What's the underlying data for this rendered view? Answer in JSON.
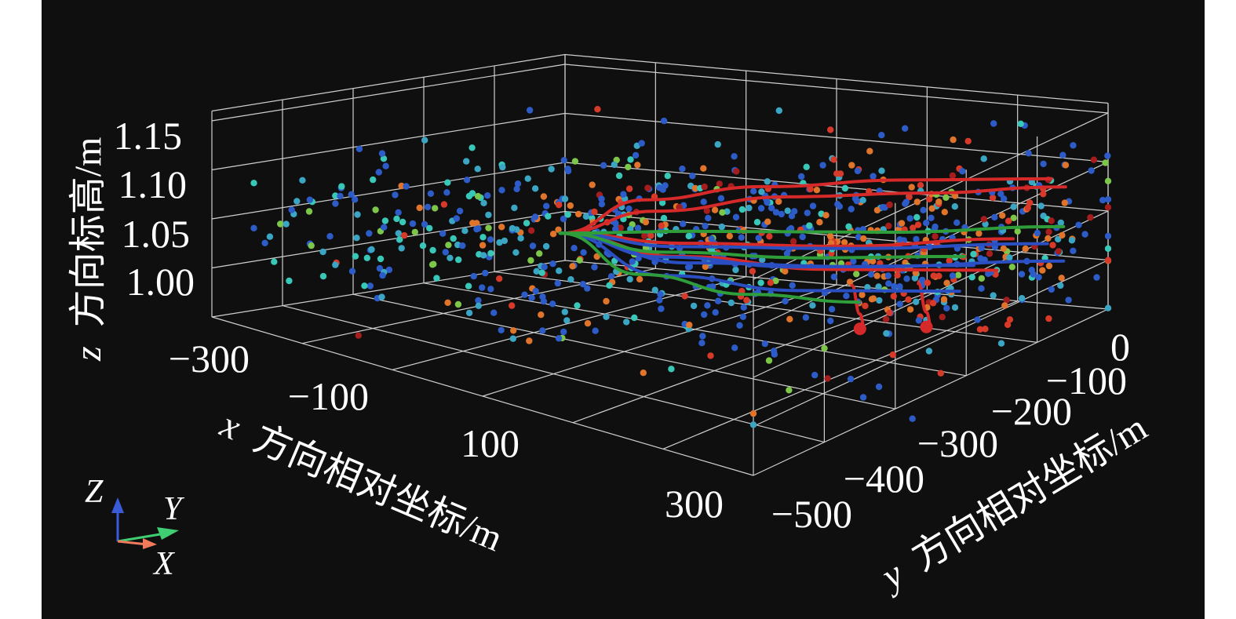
{
  "chart_data": {
    "type": "scatter",
    "title": "",
    "xlabel_var": "x",
    "xlabel": "方向相对坐标/m",
    "ylabel_var": "y",
    "ylabel": "方向相对坐标/m",
    "zlabel_var": "z",
    "zlabel": "方向标高/m",
    "xlim": [
      -300,
      300
    ],
    "ylim": [
      -500,
      0
    ],
    "zlim": [
      0.95,
      1.16
    ],
    "x_ticks": [
      "−300",
      "−100",
      "100",
      "300"
    ],
    "y_ticks": [
      "0",
      "−100",
      "−200",
      "−300",
      "−400",
      "−500"
    ],
    "z_ticks": [
      "1.00",
      "1.05",
      "1.10",
      "1.15"
    ],
    "grid": true,
    "background": "#0f0f0f",
    "point_colors": [
      "#2d5cc8",
      "#3aa6c4",
      "#39c7b8",
      "#7cc74a",
      "#e0742a",
      "#d83a2a",
      "#a51d1d"
    ],
    "trajectory_colors": {
      "red": "#d62a2a",
      "blue": "#2b4fc2",
      "green": "#2f9e3a"
    },
    "orientation_triad": {
      "z_label": "Z",
      "y_label": "Y",
      "x_label": "X",
      "z_color": "#3a5bd8",
      "y_color": "#3fcf72",
      "x_color": "#f07a5a"
    },
    "trajectories": [
      {
        "color": "red",
        "points": [
          [
            -110,
            -250,
            1.04
          ],
          [
            -40,
            -280,
            1.08
          ],
          [
            60,
            -320,
            1.1
          ],
          [
            180,
            -370,
            1.11
          ],
          [
            300,
            -420,
            1.11
          ]
        ]
      },
      {
        "color": "red",
        "points": [
          [
            -110,
            -250,
            1.04
          ],
          [
            -30,
            -280,
            1.07
          ],
          [
            80,
            -330,
            1.09
          ],
          [
            190,
            -380,
            1.095
          ],
          [
            300,
            -440,
            1.095
          ]
        ]
      },
      {
        "color": "red",
        "points": [
          [
            -110,
            -250,
            1.04
          ],
          [
            0,
            -290,
            1.04
          ],
          [
            120,
            -350,
            1.04
          ],
          [
            250,
            -430,
            1.04
          ]
        ]
      },
      {
        "color": "red",
        "points": [
          [
            -110,
            -250,
            1.04
          ],
          [
            -10,
            -290,
            1.025
          ],
          [
            110,
            -350,
            1.015
          ],
          [
            240,
            -420,
            1.01
          ]
        ]
      },
      {
        "color": "red",
        "points": [
          [
            150,
            -330,
            1.01
          ],
          [
            155,
            -335,
            0.98
          ],
          [
            158,
            -338,
            0.965
          ]
        ]
      },
      {
        "color": "red",
        "points": [
          [
            200,
            -360,
            1.01
          ],
          [
            205,
            -365,
            0.98
          ],
          [
            208,
            -368,
            0.965
          ]
        ]
      },
      {
        "color": "blue",
        "points": [
          [
            -110,
            -250,
            1.04
          ],
          [
            -10,
            -290,
            1.035
          ],
          [
            120,
            -360,
            1.035
          ],
          [
            280,
            -440,
            1.035
          ]
        ]
      },
      {
        "color": "blue",
        "points": [
          [
            -110,
            -250,
            1.04
          ],
          [
            0,
            -290,
            1.02
          ],
          [
            130,
            -370,
            1.015
          ],
          [
            290,
            -450,
            1.015
          ]
        ]
      },
      {
        "color": "blue",
        "points": [
          [
            -110,
            -250,
            1.04
          ],
          [
            -20,
            -280,
            1.025
          ],
          [
            90,
            -330,
            1.02
          ],
          [
            230,
            -400,
            1.02
          ]
        ]
      },
      {
        "color": "blue",
        "points": [
          [
            -110,
            -250,
            1.04
          ],
          [
            -10,
            -270,
            1.01
          ],
          [
            100,
            -320,
            1.0
          ],
          [
            230,
            -380,
            1.0
          ]
        ]
      },
      {
        "color": "green",
        "points": [
          [
            -110,
            -250,
            1.04
          ],
          [
            0,
            -300,
            1.05
          ],
          [
            150,
            -380,
            1.05
          ],
          [
            290,
            -450,
            1.05
          ]
        ]
      },
      {
        "color": "green",
        "points": [
          [
            -110,
            -250,
            1.04
          ],
          [
            -20,
            -280,
            1.03
          ],
          [
            100,
            -340,
            1.028
          ],
          [
            220,
            -400,
            1.028
          ]
        ]
      },
      {
        "color": "green",
        "points": [
          [
            -110,
            -250,
            1.04
          ],
          [
            -30,
            -260,
            1.01
          ],
          [
            60,
            -300,
            0.995
          ],
          [
            150,
            -340,
            0.99
          ]
        ]
      }
    ],
    "trajectory_end_markers": [
      [
        155,
        -335,
        0.965
      ],
      [
        205,
        -365,
        0.965
      ]
    ],
    "scatter_clusters": [
      {
        "center": [
          20,
          -300,
          1.04
        ],
        "spread": [
          160,
          120,
          0.035
        ],
        "count": 520,
        "color_weights": [
          0.42,
          0.16,
          0.12,
          0.06,
          0.12,
          0.08,
          0.04
        ]
      },
      {
        "center": [
          -200,
          -170,
          1.03
        ],
        "spread": [
          90,
          80,
          0.03
        ],
        "count": 110,
        "color_weights": [
          0.35,
          0.25,
          0.25,
          0.1,
          0.03,
          0.02,
          0.0
        ]
      },
      {
        "center": [
          200,
          -380,
          1.05
        ],
        "spread": [
          110,
          90,
          0.04
        ],
        "count": 260,
        "color_weights": [
          0.35,
          0.08,
          0.06,
          0.04,
          0.22,
          0.18,
          0.07
        ]
      }
    ]
  }
}
